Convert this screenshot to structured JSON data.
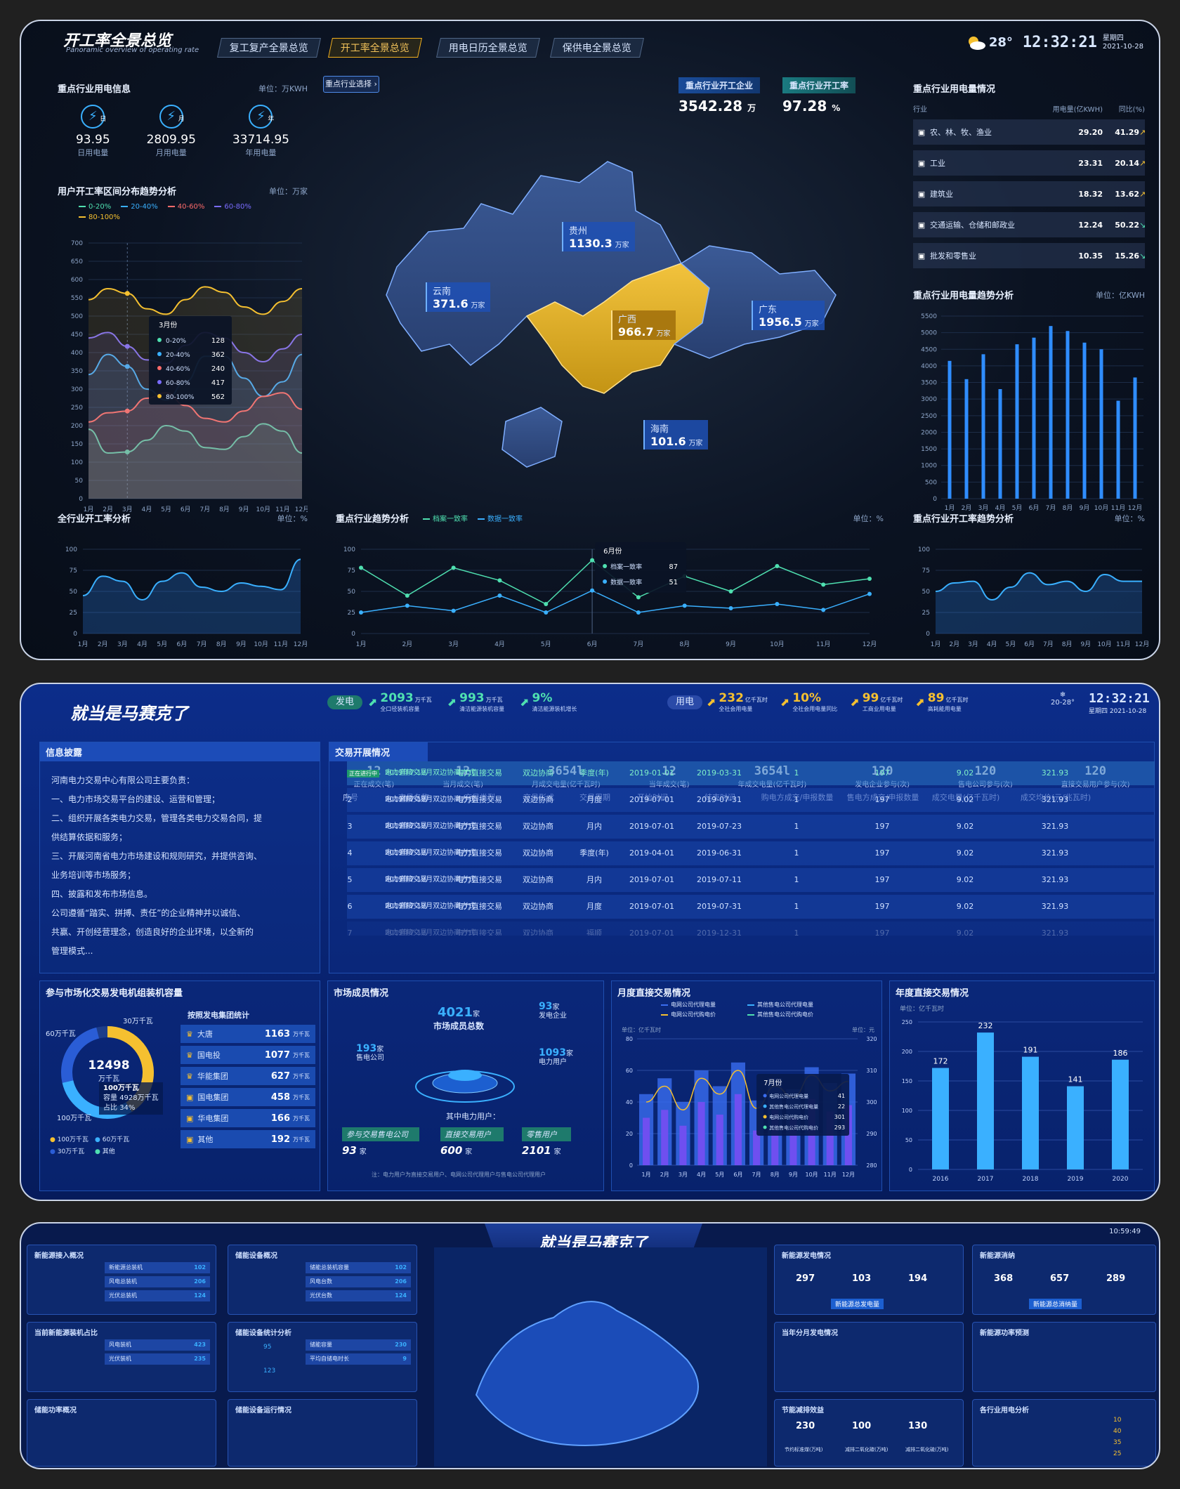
{
  "s1": {
    "title": "开工率全景总览",
    "subtitle": "Panoramic overview of operating rate",
    "tabs": [
      "复工复产全景总览",
      "开工率全景总览",
      "用电日历全景总览",
      "保供电全景总览"
    ],
    "active_tab": 1,
    "weather": {
      "temp": "28°",
      "time": "12:32:21",
      "weekday": "星期四",
      "date": "2021-10-28"
    },
    "power_info": {
      "title": "重点行业用电信息",
      "unit": "单位：万KWH",
      "items": [
        {
          "badge": "日",
          "value": "93.95",
          "label": "日用电量"
        },
        {
          "badge": "月",
          "value": "2809.95",
          "label": "月用电量"
        },
        {
          "badge": "年",
          "value": "33714.95",
          "label": "年用电量"
        }
      ]
    },
    "range_trend": {
      "title": "用户开工率区间分布趋势分析",
      "unit": "单位：万家",
      "legend": [
        "0-20%",
        "20-40%",
        "40-60%",
        "60-80%",
        "80-100%"
      ],
      "colors": [
        "#4fe0b0",
        "#3ab0ff",
        "#ff6b6b",
        "#7a6cff",
        "#f5c030"
      ],
      "yticks": [
        "700",
        "650",
        "600",
        "550",
        "500",
        "450",
        "400",
        "350",
        "300",
        "250",
        "200",
        "150",
        "100",
        "50",
        "0"
      ],
      "months": [
        "1月",
        "2月",
        "3月",
        "4月",
        "5月",
        "6月",
        "7月",
        "8月",
        "9月",
        "10月",
        "11月",
        "12月"
      ],
      "tooltip": {
        "title": "3月份",
        "rows": [
          {
            "label": "0-20%",
            "value": "128"
          },
          {
            "label": "20-40%",
            "value": "362"
          },
          {
            "label": "40-60%",
            "value": "240"
          },
          {
            "label": "60-80%",
            "value": "417"
          },
          {
            "label": "80-100%",
            "value": "562"
          }
        ]
      }
    },
    "map": {
      "selector": "重点行业选择",
      "kpi1": {
        "label": "重点行业开工企业",
        "value": "3542.28",
        "unit": "万"
      },
      "kpi2": {
        "label": "重点行业开工率",
        "value": "97.28",
        "unit": "%"
      },
      "provinces": [
        {
          "name": "贵州",
          "value": "1130.3",
          "unit": "万家"
        },
        {
          "name": "云南",
          "value": "371.6",
          "unit": "万家"
        },
        {
          "name": "广西",
          "value": "966.7",
          "unit": "万家"
        },
        {
          "name": "广东",
          "value": "1956.5",
          "unit": "万家"
        },
        {
          "name": "海南",
          "value": "101.6",
          "unit": "万家"
        }
      ]
    },
    "usage_table": {
      "title": "重点行业用电量情况",
      "headers": [
        "行业",
        "用电量(亿KWH)",
        "同比(%)"
      ],
      "rows": [
        {
          "name": "农、林、牧、渔业",
          "usage": "29.20",
          "yoy": "41.29",
          "up": true
        },
        {
          "name": "工业",
          "usage": "23.31",
          "yoy": "20.14",
          "up": true
        },
        {
          "name": "建筑业",
          "usage": "18.32",
          "yoy": "13.62",
          "up": true
        },
        {
          "name": "交通运输、仓储和邮政业",
          "usage": "12.24",
          "yoy": "50.22",
          "up": false
        },
        {
          "name": "批发和零售业",
          "usage": "10.35",
          "yoy": "15.26",
          "up": false
        }
      ]
    },
    "usage_trend": {
      "title": "重点行业用电量趋势分析",
      "unit": "单位：亿KWH",
      "yticks": [
        "5500",
        "5000",
        "4500",
        "4000",
        "3500",
        "3000",
        "2500",
        "2000",
        "1500",
        "1000",
        "500",
        "0"
      ]
    },
    "all_rate": {
      "title": "全行业开工率分析",
      "unit": "单位：%",
      "yticks": [
        "100",
        "75",
        "50",
        "25",
        "0"
      ]
    },
    "key_trend": {
      "title": "重点行业趋势分析",
      "unit": "单位：%",
      "legend": [
        "档案一致率",
        "数据一致率"
      ],
      "tooltip": {
        "title": "6月份",
        "rows": [
          {
            "label": "档案一致率",
            "value": "87"
          },
          {
            "label": "数据一致率",
            "value": "51"
          }
        ]
      }
    },
    "key_rate": {
      "title": "重点行业开工率趋势分析",
      "unit": "单位：%"
    }
  },
  "chart_data": [
    {
      "type": "line",
      "title": "用户开工率区间分布趋势分析",
      "ylim": [
        0,
        700
      ],
      "categories": [
        "1月",
        "2月",
        "3月",
        "4月",
        "5月",
        "6月",
        "7月",
        "8月",
        "9月",
        "10月",
        "11月",
        "12月"
      ],
      "series": [
        {
          "name": "0-20%",
          "values": [
            190,
            125,
            128,
            160,
            200,
            185,
            140,
            135,
            170,
            205,
            185,
            125
          ]
        },
        {
          "name": "20-40%",
          "values": [
            340,
            395,
            362,
            300,
            270,
            320,
            390,
            390,
            330,
            280,
            320,
            395
          ]
        },
        {
          "name": "40-60%",
          "values": [
            210,
            235,
            240,
            275,
            290,
            255,
            220,
            210,
            240,
            280,
            290,
            245
          ]
        },
        {
          "name": "60-80%",
          "values": [
            440,
            455,
            417,
            380,
            370,
            420,
            455,
            440,
            400,
            375,
            410,
            450
          ]
        },
        {
          "name": "80-100%",
          "values": [
            545,
            575,
            562,
            520,
            505,
            545,
            580,
            565,
            525,
            505,
            540,
            575
          ]
        }
      ]
    },
    {
      "type": "bar",
      "title": "重点行业用电量趋势分析",
      "ylim": [
        0,
        5500
      ],
      "categories": [
        "1月",
        "2月",
        "3月",
        "4月",
        "5月",
        "6月",
        "7月",
        "8月",
        "9月",
        "10月",
        "11月",
        "12月"
      ],
      "values": [
        4150,
        3600,
        4350,
        3300,
        4650,
        4850,
        5200,
        5050,
        4700,
        4500,
        2950,
        3650
      ]
    },
    {
      "type": "area",
      "title": "全行业开工率分析",
      "ylim": [
        0,
        100
      ],
      "categories": [
        "1月",
        "2月",
        "3月",
        "4月",
        "5月",
        "6月",
        "7月",
        "8月",
        "9月",
        "10月",
        "11月",
        "12月"
      ],
      "values": [
        45,
        68,
        62,
        40,
        62,
        72,
        55,
        50,
        60,
        56,
        52,
        88
      ]
    },
    {
      "type": "line",
      "title": "重点行业趋势分析",
      "ylim": [
        0,
        100
      ],
      "categories": [
        "1月",
        "2月",
        "3月",
        "4月",
        "5月",
        "6月",
        "7月",
        "8月",
        "9月",
        "10月",
        "11月",
        "12月"
      ],
      "series": [
        {
          "name": "档案一致率",
          "values": [
            78,
            45,
            78,
            63,
            35,
            87,
            43,
            68,
            50,
            80,
            58,
            65
          ]
        },
        {
          "name": "数据一致率",
          "values": [
            25,
            33,
            27,
            45,
            25,
            51,
            25,
            33,
            30,
            35,
            28,
            47
          ]
        }
      ]
    },
    {
      "type": "area",
      "title": "重点行业开工率趋势分析",
      "ylim": [
        0,
        100
      ],
      "categories": [
        "1月",
        "2月",
        "3月",
        "4月",
        "5月",
        "6月",
        "7月",
        "8月",
        "9月",
        "10月",
        "11月",
        "12月"
      ],
      "values": [
        50,
        60,
        62,
        40,
        55,
        72,
        58,
        62,
        50,
        70,
        62,
        62
      ]
    },
    {
      "type": "bar",
      "title": "月度直接交易情况",
      "ylim": [
        0,
        80
      ],
      "categories": [
        "1月",
        "2月",
        "3月",
        "4月",
        "5月",
        "6月",
        "7月",
        "8月",
        "9月",
        "10月",
        "11月",
        "12月"
      ],
      "series": [
        {
          "name": "电网公司代理电量",
          "values": [
            45,
            55,
            40,
            60,
            50,
            65,
            41,
            55,
            48,
            62,
            52,
            58
          ]
        },
        {
          "name": "其他售电公司代理电量",
          "values": [
            30,
            35,
            25,
            40,
            32,
            45,
            22,
            35,
            30,
            42,
            34,
            38
          ]
        }
      ]
    },
    {
      "type": "bar",
      "title": "年度直接交易情况",
      "ylim": [
        0,
        250
      ],
      "categories": [
        "2016",
        "2017",
        "2018",
        "2019",
        "2020"
      ],
      "values": [
        172,
        232,
        191,
        141,
        186
      ]
    }
  ],
  "s2": {
    "title": "就当是马赛克了",
    "gen_label": "发电",
    "use_label": "用电",
    "gen_kpis": [
      {
        "value": "2093",
        "unit": "万千瓦",
        "label": "全口径装机容量"
      },
      {
        "value": "993",
        "unit": "万千瓦",
        "label": "清洁能源装机容量"
      },
      {
        "value": "9%",
        "unit": "",
        "label": "清洁能源装机增长"
      }
    ],
    "use_kpis": [
      {
        "value": "232",
        "unit": "亿千瓦时",
        "label": "全社会用电量"
      },
      {
        "value": "10%",
        "unit": "",
        "label": "全社会用电量同比"
      },
      {
        "value": "99",
        "unit": "亿千瓦时",
        "label": "工商业用电量"
      },
      {
        "value": "89",
        "unit": "亿千瓦时",
        "label": "高耗能用电量"
      }
    ],
    "weather": {
      "temp": "20-28°",
      "time": "12:32:21",
      "date": "星期四 2021-10-28"
    },
    "info": {
      "title": "信息披露",
      "lines": [
        "河南电力交易中心有限公司主要负责：",
        "一、电力市场交易平台的建设、运营和管理；",
        "二、组织开展各类电力交易，管理各类电力交易合同，提",
        "供结算依据和服务；",
        "三、开展河南省电力市场建设和规则研究，并提供咨询、",
        "业务培训等市场服务；",
        "四、披露和发布市场信息。",
        "公司遵循“踏实、拼搏、责任”的企业精神并以诚信、",
        "共赢、开创经营理念，创造良好的企业环境，以全新的",
        "管理模式..."
      ]
    },
    "trade": {
      "title": "交易开展情况",
      "stats": [
        {
          "value": "12",
          "label": "正在成交(笔)"
        },
        {
          "value": "12",
          "label": "当月成交(笔)"
        },
        {
          "value": "3654l",
          "label": "月成交电量(亿千瓦时)"
        },
        {
          "value": "12",
          "label": "当年成交(笔)"
        },
        {
          "value": "3654l",
          "label": "年成交电量(亿千瓦时)"
        },
        {
          "value": "120",
          "label": "发电企业参与(次)"
        },
        {
          "value": "120",
          "label": "售电公司参与(次)"
        },
        {
          "value": "120",
          "label": "直接交易用户参与(次)"
        }
      ],
      "headers": [
        "序号",
        "交易名称",
        "交易类型",
        "交易形式",
        "交易周期",
        "开始时间",
        "结束时间",
        "购电方成交/申报数量",
        "售电方成交/申报数量",
        "成交电量(亿千瓦时)",
        "成交均价(元/兆瓦时)"
      ],
      "badge": "正在进行中",
      "name_line2": "电力直接交易",
      "rows": [
        {
          "no": "1",
          "name": "2019年7-12月双边协商方式",
          "type": "电力直接交易",
          "form": "双边协商",
          "cycle": "季度(年)",
          "start": "2019-01-01",
          "end": "2019-03-31",
          "buy": "1",
          "sell": "197",
          "qty": "9.02",
          "price": "321.93"
        },
        {
          "no": "2",
          "name": "2019年7-12月双边协商方式",
          "type": "电力直接交易",
          "form": "双边协商",
          "cycle": "月度",
          "start": "2019-07-01",
          "end": "2019-07-31",
          "buy": "1",
          "sell": "197",
          "qty": "9.02",
          "price": "321.93"
        },
        {
          "no": "3",
          "name": "2019年7-12月双边协商方式",
          "type": "电力直接交易",
          "form": "双边协商",
          "cycle": "月内",
          "start": "2019-07-01",
          "end": "2019-07-23",
          "buy": "1",
          "sell": "197",
          "qty": "9.02",
          "price": "321.93"
        },
        {
          "no": "4",
          "name": "2019年7-12月双边协商方式",
          "type": "电力直接交易",
          "form": "双边协商",
          "cycle": "季度(年)",
          "start": "2019-04-01",
          "end": "2019-06-31",
          "buy": "1",
          "sell": "197",
          "qty": "9.02",
          "price": "321.93"
        },
        {
          "no": "5",
          "name": "2019年7-12月双边协商方式",
          "type": "电力直接交易",
          "form": "双边协商",
          "cycle": "月内",
          "start": "2019-07-01",
          "end": "2019-07-11",
          "buy": "1",
          "sell": "197",
          "qty": "9.02",
          "price": "321.93"
        },
        {
          "no": "6",
          "name": "2019年7-12月双边协商方式",
          "type": "电力直接交易",
          "form": "双边协商",
          "cycle": "月度",
          "start": "2019-07-01",
          "end": "2019-07-31",
          "buy": "1",
          "sell": "197",
          "qty": "9.02",
          "price": "321.93"
        },
        {
          "no": "7",
          "name": "2019年7-12月双边协商方式",
          "type": "电力直接交易",
          "form": "双边协商",
          "cycle": "福顺",
          "start": "2019-07-01",
          "end": "2019-12-31",
          "buy": "1",
          "sell": "197",
          "qty": "9.02",
          "price": "321.93"
        }
      ]
    },
    "capacity": {
      "title": "参与市场化交易发电机组装机容量",
      "sub": "按照发电集团统计",
      "ring_value": "12498",
      "ring_unit": "万千瓦",
      "ring_labels": [
        "30万千瓦",
        "60万千瓦",
        "100万千瓦"
      ],
      "focus": {
        "name": "100万千瓦",
        "cap_label": "容量",
        "cap": "4928万千瓦",
        "share_label": "占比",
        "share": "34%"
      },
      "legend": [
        "100万千瓦",
        "60万千瓦",
        "30万千瓦",
        "其他"
      ],
      "groups": [
        {
          "name": "大唐",
          "value": "1163",
          "unit": "万千瓦"
        },
        {
          "name": "国电投",
          "value": "1077",
          "unit": "万千瓦"
        },
        {
          "name": "华能集团",
          "value": "627",
          "unit": "万千瓦"
        },
        {
          "name": "国电集团",
          "value": "458",
          "unit": "万千瓦"
        },
        {
          "name": "华电集团",
          "value": "166",
          "unit": "万千瓦"
        },
        {
          "name": "其他",
          "value": "192",
          "unit": "万千瓦"
        }
      ]
    },
    "members": {
      "title": "市场成员情况",
      "total": "4021",
      "total_unit": "家",
      "total_label": "市场成员总数",
      "gen": {
        "value": "93",
        "unit": "家",
        "label": "发电企业"
      },
      "retail": {
        "value": "193",
        "unit": "家",
        "label": "售电公司"
      },
      "user": {
        "value": "1093",
        "unit": "家",
        "label": "电力用户"
      },
      "of_which": "其中电力用户：",
      "sub": [
        {
          "label": "参与交易售电公司",
          "value": "93",
          "unit": "家"
        },
        {
          "label": "直接交易用户",
          "value": "600",
          "unit": "家"
        },
        {
          "label": "零售用户",
          "value": "2101",
          "unit": "家"
        }
      ],
      "note": "注：电力用户为直接交易用户、电网公司代理用户与售电公司代理用户"
    },
    "monthly": {
      "title": "月度直接交易情况",
      "legend": [
        "电网公司代理电量",
        "其他售电公司代理电量",
        "电网公司代购电价",
        "其他售电公司代购电价"
      ],
      "unit_l": "单位：亿千瓦时",
      "unit_r": "单位：元",
      "yl": [
        "80",
        "60",
        "40",
        "20",
        "0"
      ],
      "yr": [
        "320",
        "310",
        "300",
        "290",
        "280"
      ],
      "tooltip": {
        "title": "7月份",
        "rows": [
          {
            "label": "电网公司代理电量",
            "value": "41"
          },
          {
            "label": "其他售电公司代理电量",
            "value": "22"
          },
          {
            "label": "电网公司代购电价",
            "value": "301"
          },
          {
            "label": "其他售电公司代购电价",
            "value": "293"
          }
        ]
      }
    },
    "yearly": {
      "title": "年度直接交易情况",
      "unit": "单位：亿千瓦时",
      "yticks": [
        "250",
        "200",
        "150",
        "100",
        "50",
        "0"
      ]
    }
  },
  "s3": {
    "title": "就当是马赛克了",
    "time": "10:59:49",
    "cards": [
      {
        "title": "新能源接入概况",
        "l": [
          "新能源总装机",
          "风电总装机",
          "光伏总装机"
        ],
        "v": [
          "102",
          "206",
          "124"
        ]
      },
      {
        "title": "储能设备概况",
        "l": [
          "储能总装机容量",
          "风电台数",
          "光伏台数"
        ],
        "v": [
          "102",
          "206",
          "124"
        ]
      },
      {
        "title": "当前新能源装机占比",
        "l": [
          "风电装机",
          "光伏装机"
        ],
        "v": [
          "423",
          "235"
        ]
      },
      {
        "title": "储能设备统计分析",
        "l": [
          "储能容量",
          "平均自储电时长"
        ],
        "v": [
          "230",
          "9"
        ],
        "r": [
          "95",
          "123"
        ]
      },
      {
        "title": "储能功率概况"
      },
      {
        "title": "储能设备运行情况"
      },
      {
        "title": "新能源发电情况",
        "center": "新能源总发电量",
        "n": [
          "297",
          "103",
          "194"
        ]
      },
      {
        "title": "新能源消纳",
        "center": "新能源总消纳量",
        "n": [
          "368",
          "657",
          "289"
        ]
      },
      {
        "title": "当年分月发电情况"
      },
      {
        "title": "新能源功率预测"
      },
      {
        "title": "节能减排效益",
        "n": [
          "230",
          "100",
          "130"
        ],
        "l": [
          "节约标准煤(万吨)",
          "减排二氧化碳(万吨)",
          "减排二氧化硫(万吨)"
        ]
      },
      {
        "title": "各行业用电分析",
        "v": [
          "10",
          "40",
          "35",
          "25"
        ]
      }
    ]
  }
}
